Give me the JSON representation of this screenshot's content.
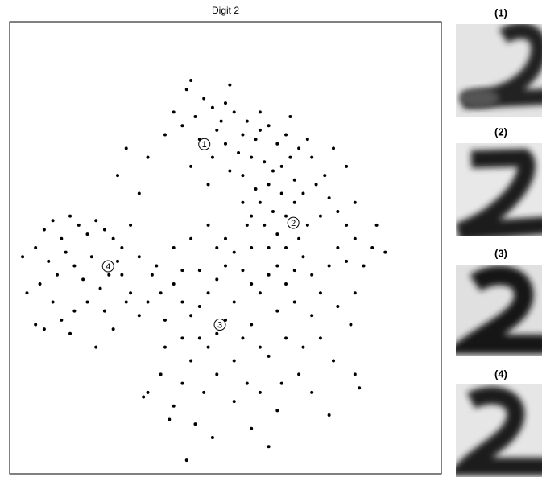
{
  "chart_data": {
    "type": "scatter",
    "title": "Digit 2",
    "color": "#000000",
    "xlim": [
      0,
      100
    ],
    "ylim": [
      0,
      100
    ],
    "x": [
      45,
      47,
      50,
      43,
      52,
      55,
      58,
      60,
      57,
      62,
      64,
      48,
      50,
      53,
      56,
      59,
      61,
      63,
      65,
      67,
      69,
      70,
      66,
      63,
      60,
      57,
      54,
      51,
      47,
      44,
      40,
      38,
      36,
      42,
      46,
      58,
      61,
      64,
      66,
      68,
      71,
      73,
      74,
      72,
      69,
      67,
      64,
      62,
      59,
      56,
      54,
      41,
      51,
      58,
      54,
      49,
      65,
      75,
      76,
      78,
      80,
      30,
      33,
      35,
      38,
      40,
      42,
      44,
      46,
      48,
      50,
      52,
      54,
      56,
      58,
      60,
      62,
      64,
      66,
      68,
      70,
      72,
      74,
      76,
      78,
      52,
      50,
      48,
      46,
      54,
      56,
      58,
      60,
      52,
      44,
      40,
      36,
      32,
      34,
      38,
      42,
      46,
      50,
      56,
      60,
      44,
      40,
      48,
      55,
      62,
      66,
      70,
      64,
      68,
      72,
      76,
      80,
      82,
      84,
      79,
      75,
      30,
      28,
      26,
      36,
      42,
      48,
      55,
      58,
      52,
      63,
      67,
      45,
      40,
      70,
      80,
      35,
      38,
      32,
      6,
      8,
      10,
      12,
      14,
      16,
      18,
      20,
      22,
      24,
      26,
      28,
      9,
      11,
      13,
      15,
      17,
      19,
      21,
      23,
      25,
      27,
      7,
      10,
      12,
      15,
      18,
      22,
      6,
      4,
      3,
      8,
      14,
      24,
      20,
      31,
      37,
      43,
      47,
      56,
      62,
      41,
      60,
      81,
      74,
      42,
      27,
      32,
      25,
      30,
      78,
      80,
      85,
      87
    ],
    "values": [
      83,
      81,
      82,
      79,
      80,
      78,
      76,
      77,
      74,
      73,
      75,
      76,
      73,
      71,
      70,
      69,
      67,
      68,
      70,
      72,
      74,
      70,
      65,
      62,
      64,
      63,
      66,
      67,
      70,
      74,
      77,
      80,
      75,
      68,
      64,
      60,
      58,
      57,
      60,
      62,
      64,
      66,
      61,
      57,
      55,
      52,
      50,
      53,
      55,
      57,
      60,
      85,
      86,
      80,
      75,
      78,
      79,
      72,
      58,
      55,
      52,
      48,
      44,
      40,
      42,
      38,
      35,
      37,
      40,
      43,
      46,
      49,
      45,
      42,
      40,
      44,
      46,
      42,
      45,
      48,
      44,
      40,
      46,
      50,
      47,
      38,
      34,
      31,
      28,
      30,
      33,
      28,
      26,
      25,
      30,
      30,
      34,
      38,
      46,
      50,
      52,
      55,
      52,
      50,
      50,
      45,
      45,
      50,
      55,
      36,
      38,
      35,
      30,
      28,
      30,
      37,
      40,
      46,
      50,
      33,
      25,
      35,
      40,
      44,
      28,
      25,
      22,
      20,
      18,
      16,
      20,
      22,
      18,
      20,
      18,
      22,
      22,
      15,
      18,
      50,
      54,
      56,
      52,
      57,
      55,
      53,
      56,
      54,
      52,
      50,
      55,
      47,
      44,
      49,
      46,
      43,
      48,
      41,
      44,
      47,
      38,
      42,
      38,
      34,
      36,
      38,
      36,
      33,
      40,
      48,
      32,
      31,
      32,
      28,
      17,
      12,
      11,
      8,
      10,
      14,
      3,
      6,
      19,
      13,
      87,
      72,
      70,
      66,
      62,
      68,
      60,
      55,
      49
    ],
    "annotations": [
      {
        "text": "1",
        "x": 45.1,
        "y": 72.9
      },
      {
        "text": "2",
        "x": 65.7,
        "y": 55.5
      },
      {
        "text": "3",
        "x": 48.7,
        "y": 33.0
      },
      {
        "text": "4",
        "x": 22.8,
        "y": 45.9
      }
    ],
    "panel_labels": [
      "(1)",
      "(2)",
      "(3)",
      "(4)"
    ]
  }
}
